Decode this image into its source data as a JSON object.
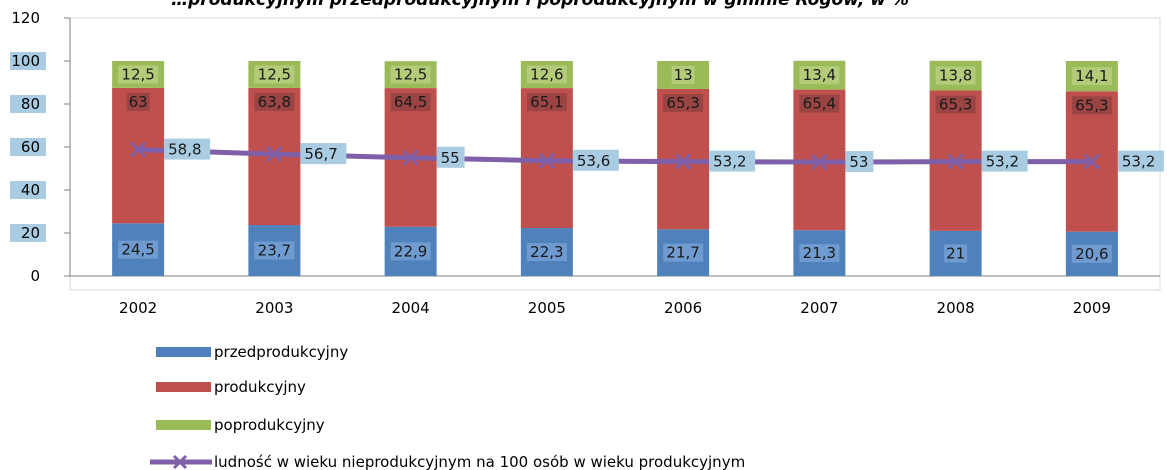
{
  "chart_data": {
    "type": "bar",
    "stacked": true,
    "title": "…produkcyjnym przedprodukcyjnym i poprodukcyjnym w gminie Rogów, w %",
    "categories": [
      "2002",
      "2003",
      "2004",
      "2005",
      "2006",
      "2007",
      "2008",
      "2009"
    ],
    "series": [
      {
        "name": "przedprodukcyjny",
        "kind": "bar",
        "color": "#4f81bd",
        "values": [
          24.5,
          23.7,
          22.9,
          22.3,
          21.7,
          21.3,
          21,
          20.6
        ],
        "labels": [
          "24,5",
          "23,7",
          "22,9",
          "22,3",
          "21,7",
          "21,3",
          "21",
          "20,6"
        ]
      },
      {
        "name": "produkcyjny",
        "kind": "bar",
        "color": "#c0504d",
        "values": [
          63,
          63.8,
          64.5,
          65.1,
          65.3,
          65.4,
          65.3,
          65.3
        ],
        "labels": [
          "63",
          "63,8",
          "64,5",
          "65,1",
          "65,3",
          "65,4",
          "65,3",
          "65,3"
        ]
      },
      {
        "name": "poprodukcyjny",
        "kind": "bar",
        "color": "#9bbb59",
        "values": [
          12.5,
          12.5,
          12.5,
          12.6,
          13,
          13.4,
          13.8,
          14.1
        ],
        "labels": [
          "12,5",
          "12,5",
          "12,5",
          "12,6",
          "13",
          "13,4",
          "13,8",
          "14,1"
        ]
      },
      {
        "name": "ludność w wieku nieprodukcyjnym na 100 osób w wieku produkcyjnym",
        "kind": "line",
        "color": "#7f5fa8",
        "values": [
          58.8,
          56.7,
          55,
          53.6,
          53.2,
          53,
          53.2,
          53.2
        ],
        "labels": [
          "58,8",
          "56,7",
          "55",
          "53,6",
          "53,2",
          "53",
          "53,2",
          "53,2"
        ]
      }
    ],
    "y_ticks": [
      "0",
      "20",
      "40",
      "60",
      "80",
      "100",
      "120"
    ],
    "ylim": [
      0,
      120
    ],
    "grid": false,
    "legend_position": "bottom-left"
  }
}
